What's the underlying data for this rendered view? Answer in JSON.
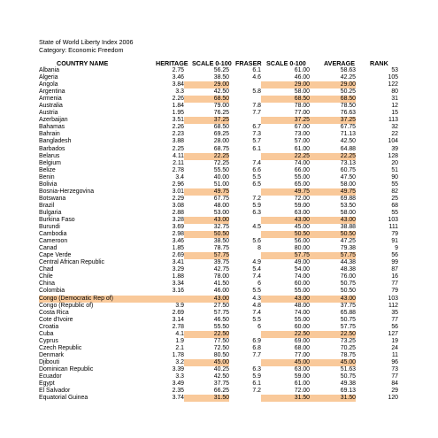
{
  "title": "State of World Liberty Index 2006",
  "category": "Category: Economic Freedom",
  "headers": {
    "country": "COUNTRY NAME",
    "heritage": "HERITAGE",
    "score1": "SCALE 0-100",
    "fraser": "FRASER",
    "score2": "SCALE 0-100",
    "average": "AVERAGE",
    "rank": "RANK"
  },
  "highlight_color": "#f9c99a",
  "rows": [
    {
      "country": "Albania",
      "heritage": "2.75",
      "score1": "56.25",
      "fraser": "6.1",
      "score2": "61.00",
      "average": "58.63",
      "rank": "53",
      "highlight": "none"
    },
    {
      "country": "Algeria",
      "heritage": "3.46",
      "score1": "38.50",
      "fraser": "4.6",
      "score2": "46.00",
      "average": "42.25",
      "rank": "105",
      "highlight": "none"
    },
    {
      "country": "Angola",
      "heritage": "3.84",
      "score1": "29.00",
      "fraser": "",
      "score2": "29.00",
      "average": "29.00",
      "rank": "122",
      "highlight": "partial"
    },
    {
      "country": "Argentina",
      "heritage": "3.3",
      "score1": "42.50",
      "fraser": "5.8",
      "score2": "58.00",
      "average": "50.25",
      "rank": "80",
      "highlight": "none"
    },
    {
      "country": "Armenia",
      "heritage": "2.26",
      "score1": "68.50",
      "fraser": "",
      "score2": "68.50",
      "average": "68.50",
      "rank": "31",
      "highlight": "partial"
    },
    {
      "country": "Australia",
      "heritage": "1.84",
      "score1": "79.00",
      "fraser": "7.8",
      "score2": "78.00",
      "average": "78.50",
      "rank": "12",
      "highlight": "none"
    },
    {
      "country": "Austria",
      "heritage": "1.95",
      "score1": "76.25",
      "fraser": "7.7",
      "score2": "77.00",
      "average": "76.63",
      "rank": "15",
      "highlight": "none"
    },
    {
      "country": "Azerbaijan",
      "heritage": "3.51",
      "score1": "37.25",
      "fraser": "",
      "score2": "37.25",
      "average": "37.25",
      "rank": "113",
      "highlight": "partial"
    },
    {
      "country": "Bahamas",
      "heritage": "2.26",
      "score1": "68.50",
      "fraser": "6.7",
      "score2": "67.00",
      "average": "67.75",
      "rank": "32",
      "highlight": "none"
    },
    {
      "country": "Bahrain",
      "heritage": "2.23",
      "score1": "69.25",
      "fraser": "7.3",
      "score2": "73.00",
      "average": "71.13",
      "rank": "22",
      "highlight": "none"
    },
    {
      "country": "Bangladesh",
      "heritage": "3.88",
      "score1": "28.00",
      "fraser": "5.7",
      "score2": "57.00",
      "average": "42.50",
      "rank": "104",
      "highlight": "none"
    },
    {
      "country": "Barbados",
      "heritage": "2.25",
      "score1": "68.75",
      "fraser": "6.1",
      "score2": "61.00",
      "average": "64.88",
      "rank": "39",
      "highlight": "none"
    },
    {
      "country": "Belarus",
      "heritage": "4.11",
      "score1": "22.25",
      "fraser": "",
      "score2": "22.25",
      "average": "22.25",
      "rank": "128",
      "highlight": "partial"
    },
    {
      "country": "Belgium",
      "heritage": "2.11",
      "score1": "72.25",
      "fraser": "7.4",
      "score2": "74.00",
      "average": "73.13",
      "rank": "20",
      "highlight": "none"
    },
    {
      "country": "Belize",
      "heritage": "2.78",
      "score1": "55.50",
      "fraser": "6.6",
      "score2": "66.00",
      "average": "60.75",
      "rank": "51",
      "highlight": "none"
    },
    {
      "country": "Benin",
      "heritage": "3.4",
      "score1": "40.00",
      "fraser": "5.5",
      "score2": "55.00",
      "average": "47.50",
      "rank": "90",
      "highlight": "none"
    },
    {
      "country": "Bolivia",
      "heritage": "2.96",
      "score1": "51.00",
      "fraser": "6.5",
      "score2": "65.00",
      "average": "58.00",
      "rank": "55",
      "highlight": "none"
    },
    {
      "country": "Bosnia-Herzegovina",
      "heritage": "3.01",
      "score1": "49.75",
      "fraser": "",
      "score2": "49.75",
      "average": "49.75",
      "rank": "82",
      "highlight": "partial"
    },
    {
      "country": "Botswana",
      "heritage": "2.29",
      "score1": "67.75",
      "fraser": "7.2",
      "score2": "72.00",
      "average": "69.88",
      "rank": "25",
      "highlight": "none"
    },
    {
      "country": "Brazil",
      "heritage": "3.08",
      "score1": "48.00",
      "fraser": "5.9",
      "score2": "59.00",
      "average": "53.50",
      "rank": "68",
      "highlight": "none"
    },
    {
      "country": "Bulgaria",
      "heritage": "2.88",
      "score1": "53.00",
      "fraser": "6.3",
      "score2": "63.00",
      "average": "58.00",
      "rank": "55",
      "highlight": "none"
    },
    {
      "country": "Burkina Faso",
      "heritage": "3.28",
      "score1": "43.00",
      "fraser": "",
      "score2": "43.00",
      "average": "43.00",
      "rank": "103",
      "highlight": "partial"
    },
    {
      "country": "Burundi",
      "heritage": "3.69",
      "score1": "32.75",
      "fraser": "4.5",
      "score2": "45.00",
      "average": "38.88",
      "rank": "111",
      "highlight": "none"
    },
    {
      "country": "Cambodia",
      "heritage": "2.98",
      "score1": "50.50",
      "fraser": "",
      "score2": "50.50",
      "average": "50.50",
      "rank": "79",
      "highlight": "partial"
    },
    {
      "country": "Cameroon",
      "heritage": "3.46",
      "score1": "38.50",
      "fraser": "5.6",
      "score2": "56.00",
      "average": "47.25",
      "rank": "91",
      "highlight": "none"
    },
    {
      "country": "Canad",
      "heritage": "1.85",
      "score1": "78.75",
      "fraser": "8",
      "score2": "80.00",
      "average": "79.38",
      "rank": "9",
      "highlight": "none"
    },
    {
      "country": "Cape Verde",
      "heritage": "2.69",
      "score1": "57.75",
      "fraser": "",
      "score2": "57.75",
      "average": "57.75",
      "rank": "56",
      "highlight": "partial"
    },
    {
      "country": "Central African Republic",
      "heritage": "3.41",
      "score1": "39.75",
      "fraser": "4.9",
      "score2": "49.00",
      "average": "44.38",
      "rank": "99",
      "highlight": "none"
    },
    {
      "country": "Chad",
      "heritage": "3.29",
      "score1": "42.75",
      "fraser": "5.4",
      "score2": "54.00",
      "average": "48.38",
      "rank": "87",
      "highlight": "none"
    },
    {
      "country": "Chile",
      "heritage": "1.88",
      "score1": "78.00",
      "fraser": "7.4",
      "score2": "74.00",
      "average": "76.00",
      "rank": "16",
      "highlight": "none"
    },
    {
      "country": "China",
      "heritage": "3.34",
      "score1": "41.50",
      "fraser": "6",
      "score2": "60.00",
      "average": "50.75",
      "rank": "77",
      "highlight": "none"
    },
    {
      "country": "Colombia",
      "heritage": "3.16",
      "score1": "46.00",
      "fraser": "5.5",
      "score2": "55.00",
      "average": "50.50",
      "rank": "79",
      "highlight": "none"
    },
    {
      "country": "Congo (Democratic Rep of)",
      "heritage": "",
      "score1": "43.00",
      "fraser": "4.3",
      "score2": "43.00",
      "average": "43.00",
      "rank": "103",
      "highlight": "country"
    },
    {
      "country": "Congo (Republic of)",
      "heritage": "3.9",
      "score1": "27.50",
      "fraser": "4.8",
      "score2": "48.00",
      "average": "37.75",
      "rank": "112",
      "highlight": "none"
    },
    {
      "country": "Costa Rica",
      "heritage": "2.69",
      "score1": "57.75",
      "fraser": "7.4",
      "score2": "74.00",
      "average": "65.88",
      "rank": "35",
      "highlight": "none"
    },
    {
      "country": "Cote d'Ivoire",
      "heritage": "3.14",
      "score1": "46.50",
      "fraser": "5.5",
      "score2": "55.00",
      "average": "50.75",
      "rank": "77",
      "highlight": "none"
    },
    {
      "country": "Croatia",
      "heritage": "2.78",
      "score1": "55.50",
      "fraser": "6",
      "score2": "60.00",
      "average": "57.75",
      "rank": "56",
      "highlight": "none"
    },
    {
      "country": "Cuba",
      "heritage": "4.1",
      "score1": "22.50",
      "fraser": "",
      "score2": "22.50",
      "average": "22.50",
      "rank": "127",
      "highlight": "partial"
    },
    {
      "country": "Cyprus",
      "heritage": "1.9",
      "score1": "77.50",
      "fraser": "6.9",
      "score2": "69.00",
      "average": "73.25",
      "rank": "19",
      "highlight": "none"
    },
    {
      "country": "Czech Republic",
      "heritage": "2.1",
      "score1": "72.50",
      "fraser": "6.8",
      "score2": "68.00",
      "average": "70.25",
      "rank": "24",
      "highlight": "none"
    },
    {
      "country": "Denmark",
      "heritage": "1.78",
      "score1": "80.50",
      "fraser": "7.7",
      "score2": "77.00",
      "average": "78.75",
      "rank": "11",
      "highlight": "none"
    },
    {
      "country": "Djibouti",
      "heritage": "3.2",
      "score1": "45.00",
      "fraser": "",
      "score2": "45.00",
      "average": "45.00",
      "rank": "96",
      "highlight": "partial"
    },
    {
      "country": "Dominican Republic",
      "heritage": "3.39",
      "score1": "40.25",
      "fraser": "6.3",
      "score2": "63.00",
      "average": "51.63",
      "rank": "73",
      "highlight": "none"
    },
    {
      "country": "Ecuador",
      "heritage": "3.3",
      "score1": "42.50",
      "fraser": "5.9",
      "score2": "59.00",
      "average": "50.75",
      "rank": "77",
      "highlight": "none"
    },
    {
      "country": "Egypt",
      "heritage": "3.49",
      "score1": "37.75",
      "fraser": "6.1",
      "score2": "61.00",
      "average": "49.38",
      "rank": "84",
      "highlight": "none"
    },
    {
      "country": "El Salvador",
      "heritage": "2.35",
      "score1": "66.25",
      "fraser": "7.2",
      "score2": "72.00",
      "average": "69.13",
      "rank": "29",
      "highlight": "none"
    },
    {
      "country": "Equatorial Guinea",
      "heritage": "3.74",
      "score1": "31.50",
      "fraser": "",
      "score2": "31.50",
      "average": "31.50",
      "rank": "120",
      "highlight": "partial"
    }
  ]
}
